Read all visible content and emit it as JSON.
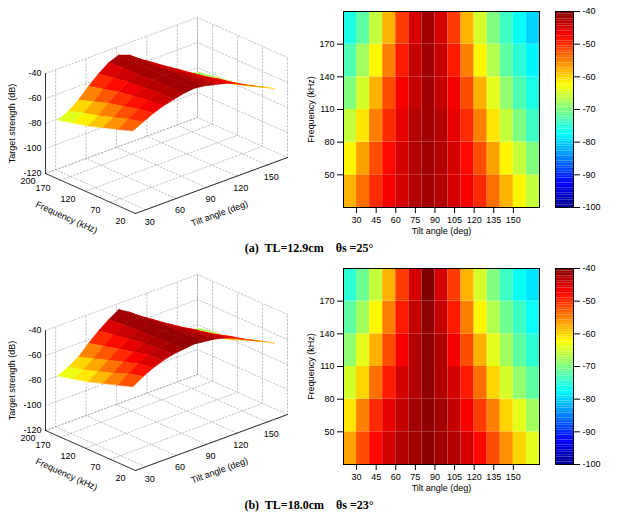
{
  "chart_data": [
    {
      "type": "surface",
      "color": "jet",
      "x_label": "Tilt angle (deg)",
      "y_label": "Frequency (kHz)",
      "z_label": "Target strength (dB)",
      "xlim": [
        20,
        170
      ],
      "xticks": [
        30,
        60,
        90,
        120,
        150
      ],
      "ylim": [
        20,
        200
      ],
      "yticks": [
        20,
        70,
        120,
        170,
        200
      ],
      "zlim": [
        -120,
        -40
      ],
      "zticks": [
        -40,
        -60,
        -80,
        -100,
        -120
      ],
      "x": [
        25,
        35,
        45,
        55,
        65,
        75,
        85,
        95,
        105,
        115,
        125,
        135,
        145,
        155,
        165
      ],
      "y": [
        35,
        65,
        95,
        125,
        155,
        185
      ],
      "values": [
        [
          -58,
          -54,
          -50,
          -47,
          -45,
          -43,
          -42,
          -43,
          -45,
          -47,
          -50,
          -54,
          -58,
          -62,
          -66
        ],
        [
          -62,
          -57,
          -52,
          -48,
          -45,
          -43,
          -42,
          -43,
          -45,
          -48,
          -52,
          -57,
          -62,
          -66,
          -70
        ],
        [
          -66,
          -61,
          -55,
          -50,
          -46,
          -43,
          -42,
          -43,
          -46,
          -50,
          -55,
          -61,
          -66,
          -70,
          -74
        ],
        [
          -70,
          -65,
          -58,
          -52,
          -47,
          -44,
          -42,
          -44,
          -47,
          -52,
          -58,
          -64,
          -69,
          -73,
          -76
        ],
        [
          -73,
          -68,
          -62,
          -55,
          -49,
          -44,
          -42,
          -44,
          -49,
          -55,
          -62,
          -67,
          -72,
          -75,
          -78
        ],
        [
          -76,
          -72,
          -66,
          -58,
          -51,
          -45,
          -42,
          -45,
          -51,
          -58,
          -65,
          -70,
          -74,
          -77,
          -80
        ]
      ]
    },
    {
      "type": "heatmap",
      "color": "jet",
      "x_label": "Tilt angle (deg)",
      "y_label": "Frequency (kHz)",
      "xlim": [
        20,
        170
      ],
      "xticks": [
        30,
        45,
        60,
        75,
        90,
        105,
        120,
        135,
        150
      ],
      "ylim": [
        20,
        200
      ],
      "yticks": [
        50,
        80,
        110,
        140,
        170
      ],
      "colorbar": {
        "range": [
          -100,
          -40
        ],
        "ticks": [
          -40,
          -50,
          -60,
          -70,
          -80,
          -90,
          -100
        ]
      },
      "x": [
        25,
        35,
        45,
        55,
        65,
        75,
        85,
        95,
        105,
        115,
        125,
        135,
        145,
        155,
        165
      ],
      "y": [
        35,
        65,
        95,
        125,
        155,
        185
      ],
      "values": [
        [
          -58,
          -54,
          -50,
          -47,
          -45,
          -43,
          -42,
          -43,
          -45,
          -47,
          -50,
          -54,
          -58,
          -62,
          -66
        ],
        [
          -62,
          -57,
          -52,
          -48,
          -45,
          -43,
          -42,
          -43,
          -45,
          -48,
          -52,
          -57,
          -62,
          -66,
          -70
        ],
        [
          -66,
          -61,
          -55,
          -50,
          -46,
          -43,
          -42,
          -43,
          -46,
          -50,
          -55,
          -61,
          -66,
          -70,
          -74
        ],
        [
          -70,
          -65,
          -58,
          -52,
          -47,
          -44,
          -42,
          -44,
          -47,
          -52,
          -58,
          -64,
          -69,
          -73,
          -76
        ],
        [
          -73,
          -68,
          -62,
          -55,
          -49,
          -44,
          -42,
          -44,
          -49,
          -55,
          -62,
          -67,
          -72,
          -75,
          -78
        ],
        [
          -76,
          -72,
          -66,
          -58,
          -51,
          -45,
          -42,
          -45,
          -51,
          -58,
          -65,
          -70,
          -74,
          -77,
          -80
        ]
      ]
    },
    {
      "type": "surface",
      "color": "jet",
      "x_label": "Tilt angle (deg)",
      "y_label": "Frequency (kHz)",
      "z_label": "Target strength (dB)",
      "xlim": [
        20,
        170
      ],
      "xticks": [
        30,
        60,
        90,
        120,
        150
      ],
      "ylim": [
        20,
        200
      ],
      "yticks": [
        20,
        70,
        120,
        170,
        200
      ],
      "zlim": [
        -120,
        -40
      ],
      "zticks": [
        -40,
        -60,
        -80,
        -100,
        -120
      ],
      "x": [
        25,
        35,
        45,
        55,
        65,
        75,
        85,
        95,
        105,
        115,
        125,
        135,
        145,
        155,
        165
      ],
      "y": [
        35,
        65,
        95,
        125,
        155,
        185
      ],
      "values": [
        [
          -57,
          -52,
          -48,
          -45,
          -43,
          -42,
          -41,
          -42,
          -43,
          -45,
          -48,
          -52,
          -56,
          -60,
          -64
        ],
        [
          -61,
          -55,
          -50,
          -46,
          -44,
          -42,
          -41,
          -42,
          -44,
          -47,
          -51,
          -55,
          -60,
          -64,
          -68
        ],
        [
          -65,
          -60,
          -54,
          -49,
          -45,
          -43,
          -41,
          -43,
          -45,
          -49,
          -54,
          -60,
          -65,
          -69,
          -72
        ],
        [
          -69,
          -64,
          -58,
          -52,
          -47,
          -43,
          -41,
          -43,
          -47,
          -52,
          -58,
          -64,
          -68,
          -72,
          -75
        ],
        [
          -72,
          -68,
          -62,
          -55,
          -49,
          -44,
          -41,
          -44,
          -49,
          -55,
          -62,
          -67,
          -71,
          -74,
          -77
        ],
        [
          -75,
          -71,
          -66,
          -58,
          -51,
          -45,
          -40,
          -45,
          -51,
          -58,
          -65,
          -70,
          -74,
          -77,
          -79
        ]
      ]
    },
    {
      "type": "heatmap",
      "color": "jet",
      "x_label": "Tilt angle (deg)",
      "y_label": "Frequency (kHz)",
      "xlim": [
        20,
        170
      ],
      "xticks": [
        30,
        45,
        60,
        75,
        90,
        105,
        120,
        135,
        150
      ],
      "ylim": [
        20,
        200
      ],
      "yticks": [
        50,
        80,
        110,
        140,
        170
      ],
      "colorbar": {
        "range": [
          -100,
          -40
        ],
        "ticks": [
          -40,
          -50,
          -60,
          -70,
          -80,
          -90,
          -100
        ]
      },
      "x": [
        25,
        35,
        45,
        55,
        65,
        75,
        85,
        95,
        105,
        115,
        125,
        135,
        145,
        155,
        165
      ],
      "y": [
        35,
        65,
        95,
        125,
        155,
        185
      ],
      "values": [
        [
          -57,
          -52,
          -48,
          -45,
          -43,
          -42,
          -41,
          -42,
          -43,
          -45,
          -48,
          -52,
          -56,
          -60,
          -64
        ],
        [
          -61,
          -55,
          -50,
          -46,
          -44,
          -42,
          -41,
          -42,
          -44,
          -47,
          -51,
          -55,
          -60,
          -64,
          -68
        ],
        [
          -65,
          -60,
          -54,
          -49,
          -45,
          -43,
          -41,
          -43,
          -45,
          -49,
          -54,
          -60,
          -65,
          -69,
          -72
        ],
        [
          -69,
          -64,
          -58,
          -52,
          -47,
          -43,
          -41,
          -43,
          -47,
          -52,
          -58,
          -64,
          -68,
          -72,
          -75
        ],
        [
          -72,
          -68,
          -62,
          -55,
          -49,
          -44,
          -41,
          -44,
          -49,
          -55,
          -62,
          -67,
          -71,
          -74,
          -77
        ],
        [
          -75,
          -71,
          -66,
          -58,
          -51,
          -45,
          -40,
          -45,
          -51,
          -58,
          -65,
          -70,
          -74,
          -77,
          -79
        ]
      ]
    }
  ],
  "captions": [
    "(a)  TL=12.9cm    θs =25°",
    "(b)  TL=18.0cm    θs =23°"
  ]
}
